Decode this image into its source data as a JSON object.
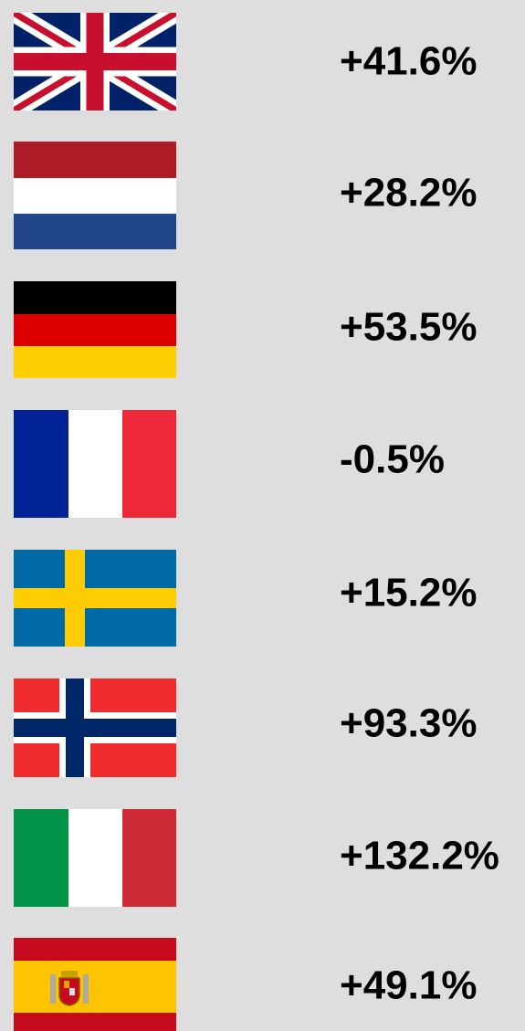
{
  "rows": [
    "+41.6%",
    "+28.2%",
    "+53.5%",
    "-0.5%",
    "+15.2%",
    "+93.3%",
    "+132.2%",
    "+49.1%"
  ]
}
